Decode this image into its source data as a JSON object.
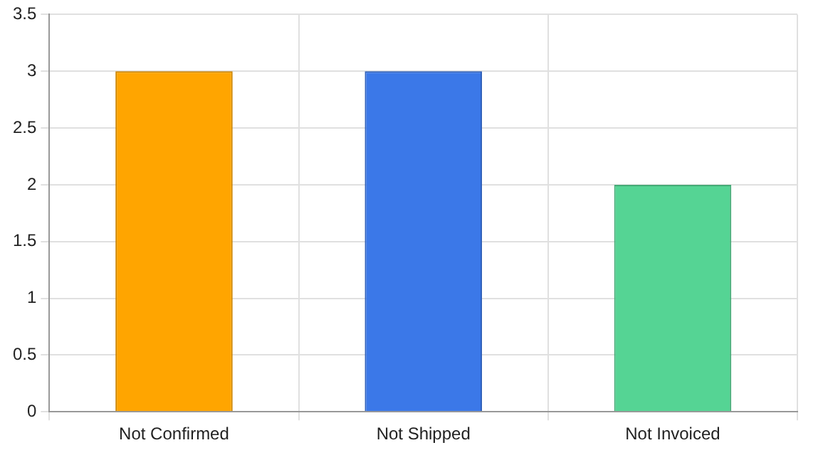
{
  "chart_data": {
    "type": "bar",
    "categories": [
      "Not Confirmed",
      "Not Shipped",
      "Not Invoiced"
    ],
    "values": [
      3,
      3,
      2
    ],
    "colors": [
      "#ffa500",
      "#3b78e8",
      "#55d494"
    ],
    "ylim": [
      0,
      3.5
    ],
    "yticks": [
      0,
      0.5,
      1,
      1.5,
      2,
      2.5,
      3,
      3.5
    ],
    "grid": true
  }
}
